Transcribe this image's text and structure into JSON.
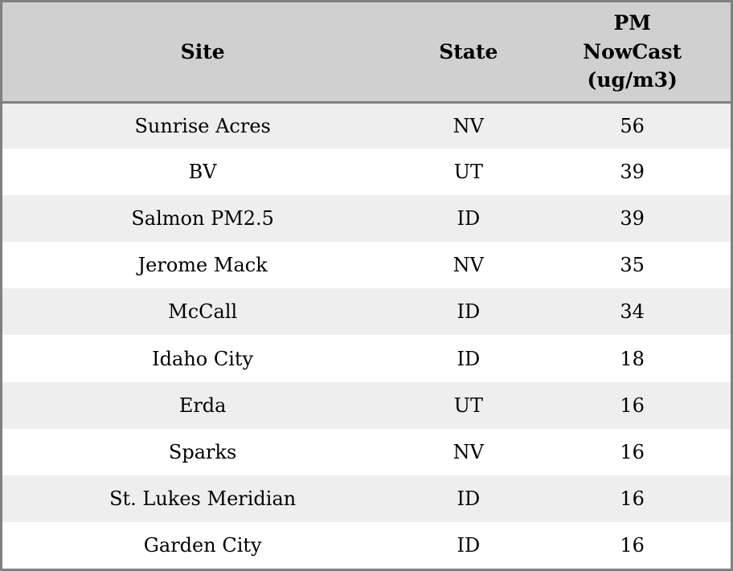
{
  "chart_data": {
    "type": "table",
    "title": "",
    "columns": [
      "Site",
      "State",
      "PM NowCast (ug/m3)"
    ],
    "rows": [
      [
        "Sunrise Acres",
        "NV",
        56
      ],
      [
        "BV",
        "UT",
        39
      ],
      [
        "Salmon PM2.5",
        "ID",
        39
      ],
      [
        "Jerome Mack",
        "NV",
        35
      ],
      [
        "McCall",
        "ID",
        34
      ],
      [
        "Idaho City",
        "ID",
        18
      ],
      [
        "Erda",
        "UT",
        16
      ],
      [
        "Sparks",
        "NV",
        16
      ],
      [
        "St. Lukes Meridian",
        "ID",
        16
      ],
      [
        "Garden City",
        "ID",
        16
      ]
    ],
    "layout": {
      "header_rows": 1,
      "row_striping": "odd rows shaded",
      "alignment": "center"
    }
  },
  "colors": {
    "header_bg": "#d0d0d0",
    "row_alt_bg": "#eeeeee",
    "row_bg": "#ffffff",
    "border": "#808080",
    "text": "#000000"
  }
}
